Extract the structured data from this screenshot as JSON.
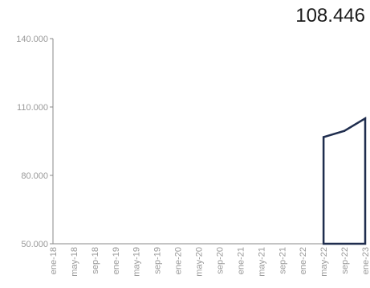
{
  "headline_value": "108.446",
  "colors": {
    "series": "#1f2d4e",
    "axis": "#888888",
    "tick_text": "#999999"
  },
  "chart_data": {
    "type": "area",
    "title": "",
    "xlabel": "",
    "ylabel": "",
    "ylim": [
      50000,
      140000
    ],
    "y_ticks": [
      50000,
      80000,
      110000,
      140000
    ],
    "y_tick_labels": [
      "50.000",
      "80.000",
      "110.000",
      "140.000"
    ],
    "x_tick_labels": [
      "ene-18",
      "may-18",
      "sep-18",
      "ene-19",
      "may-19",
      "sep-19",
      "ene-20",
      "may-20",
      "sep-20",
      "ene-21",
      "may-21",
      "sep-21",
      "ene-22",
      "may-22",
      "sep-22",
      "ene-23"
    ],
    "grid": false,
    "legend": "none",
    "series": [
      {
        "x": [
          "may-22",
          "sep-22",
          "ene-23"
        ],
        "values": [
          96800,
          99500,
          105000
        ]
      }
    ]
  }
}
